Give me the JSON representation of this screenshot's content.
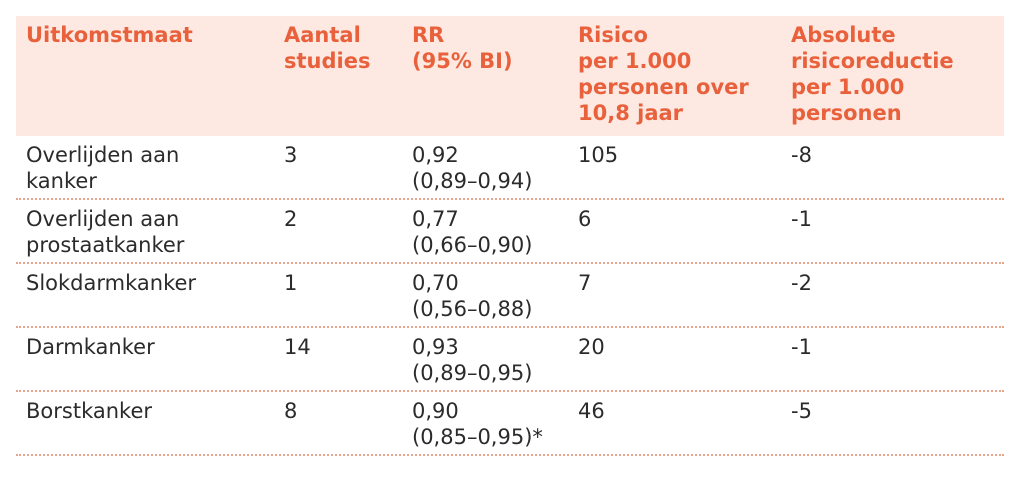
{
  "table": {
    "headers": [
      "Uitkomstmaat",
      "Aantal\nstudies",
      "RR\n(95% BI)",
      "Risico\nper 1.000\npersonen over\n10,8 jaar",
      "Absolute\nrisicoreductie\nper 1.000\npersonen"
    ],
    "rows": [
      [
        "Overlijden aan\nkanker",
        "3",
        "0,92\n(0,89–0,94)",
        "105",
        "-8"
      ],
      [
        "Overlijden aan\nprostaatkanker",
        "2",
        "0,77\n(0,66–0,90)",
        "6",
        "-1"
      ],
      [
        "Slokdarmkanker",
        "1",
        "0,70\n(0,56–0,88)",
        "7",
        "-2"
      ],
      [
        "Darmkanker",
        "14",
        "0,93\n(0,89–0,95)",
        "20",
        "-1"
      ],
      [
        "Borstkanker",
        "8",
        "0,90\n(0,85–0,95)*",
        "46",
        "-5"
      ]
    ]
  },
  "colors": {
    "header_text": "#e8613c",
    "header_bg": "#fde9e1",
    "divider": "#e8a58a",
    "body_text": "#2b2b2b"
  }
}
